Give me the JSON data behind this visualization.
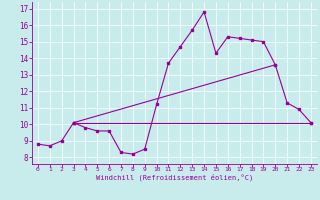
{
  "xlabel": "Windchill (Refroidissement éolien,°C)",
  "bg_color": "#c8ecec",
  "line_color": "#990099",
  "xlim": [
    -0.5,
    23.5
  ],
  "ylim": [
    7.6,
    17.4
  ],
  "xticks": [
    0,
    1,
    2,
    3,
    4,
    5,
    6,
    7,
    8,
    9,
    10,
    11,
    12,
    13,
    14,
    15,
    16,
    17,
    18,
    19,
    20,
    21,
    22,
    23
  ],
  "yticks": [
    8,
    9,
    10,
    11,
    12,
    13,
    14,
    15,
    16,
    17
  ],
  "line1_x": [
    0,
    1,
    2,
    3,
    4,
    5,
    6,
    7,
    8,
    9,
    10,
    11,
    12,
    13,
    14,
    15,
    16,
    17,
    18,
    19,
    20,
    21,
    22,
    23
  ],
  "line1_y": [
    8.8,
    8.7,
    9.0,
    10.1,
    9.8,
    9.6,
    9.6,
    8.3,
    8.2,
    8.5,
    11.2,
    13.7,
    14.7,
    15.7,
    16.8,
    14.3,
    15.3,
    15.2,
    15.1,
    15.0,
    13.6,
    11.3,
    10.9,
    10.1
  ],
  "line2_x": [
    3,
    23
  ],
  "line2_y": [
    10.1,
    10.1
  ],
  "line3_x": [
    3,
    20
  ],
  "line3_y": [
    10.1,
    13.6
  ]
}
